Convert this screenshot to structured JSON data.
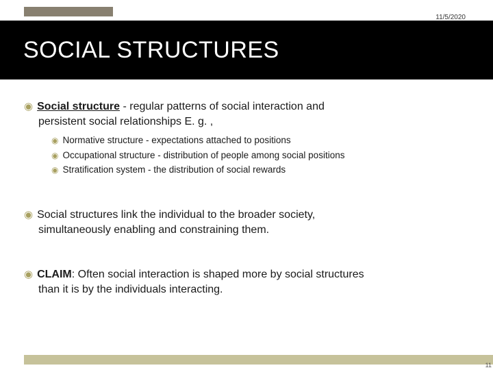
{
  "date": "11/5/2020",
  "title": "SOCIAL STRUCTURES",
  "colors": {
    "title_band_bg": "#000000",
    "title_text": "#ffffff",
    "top_bar": "#888070",
    "footer_bar": "#c6c29a",
    "bullet": "#a8a060",
    "body_text": "#1a1a1a",
    "page_bg": "#ffffff"
  },
  "page_number": "11",
  "items": [
    {
      "lead": "Social structure",
      "lead_style": "underline_bold",
      "rest_first_line": " - regular patterns of social interaction and",
      "cont_line": "persistent social relationships  E. g. ,",
      "subs": [
        "Normative structure - expectations attached to positions",
        "Occupational structure - distribution of people among social positions",
        "Stratification system - the distribution of social rewards"
      ]
    },
    {
      "lead": "",
      "lead_style": "none",
      "rest_first_line": " Social structures link the individual to the broader society,",
      "cont_line": "simultaneously enabling and constraining them.",
      "subs": []
    },
    {
      "lead": "CLAIM",
      "lead_style": "bold",
      "rest_first_line": ":  Often social interaction is shaped more by social structures",
      "cont_line": "than it is by the individuals interacting.",
      "subs": []
    }
  ]
}
